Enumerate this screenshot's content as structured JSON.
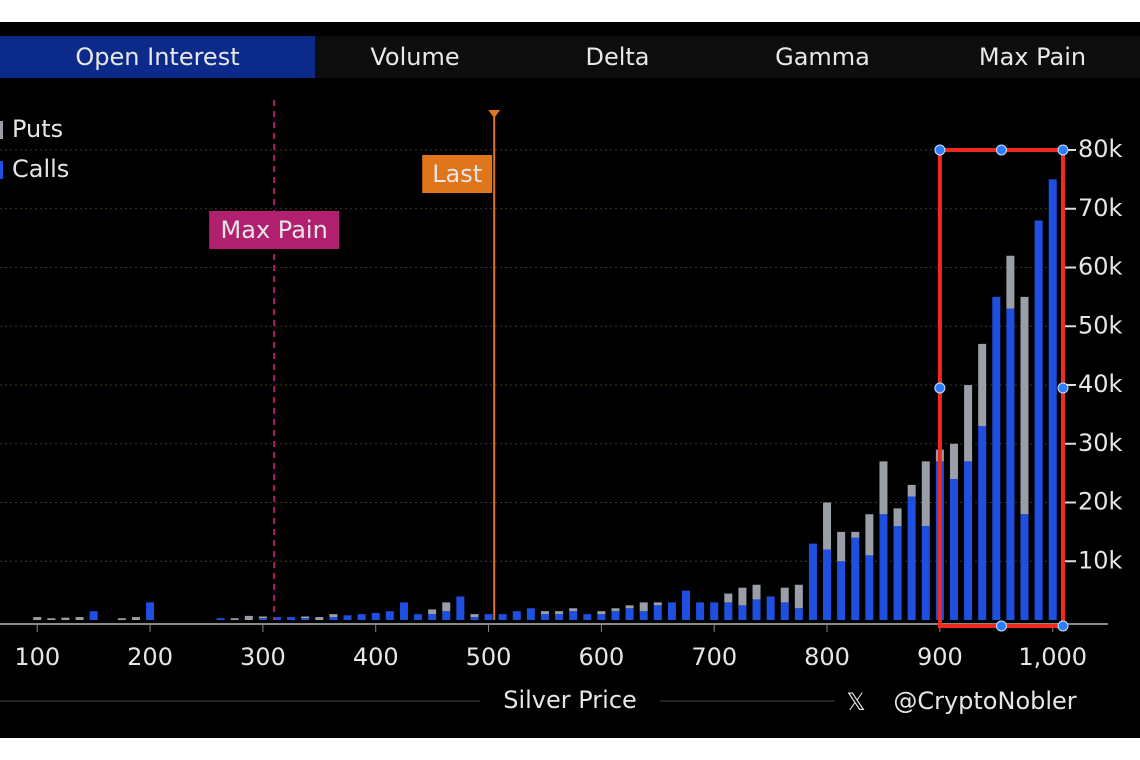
{
  "tabs": [
    "Open Interest",
    "Volume",
    "Delta",
    "Gamma",
    "Max Pain"
  ],
  "chart_data": {
    "type": "bar",
    "stacked": true,
    "x_label": "Silver Price",
    "watermark": "@CryptoNobler",
    "x": [
      100,
      112.5,
      125,
      137.5,
      150,
      162.5,
      175,
      187.5,
      200,
      212.5,
      225,
      237.5,
      250,
      262.5,
      275,
      287.5,
      300,
      312.5,
      325,
      337.5,
      350,
      362.5,
      375,
      387.5,
      400,
      412.5,
      425,
      437.5,
      450,
      462.5,
      475,
      487.5,
      500,
      512.5,
      525,
      537.5,
      550,
      562.5,
      575,
      587.5,
      600,
      612.5,
      625,
      637.5,
      650,
      662.5,
      675,
      687.5,
      700,
      712.5,
      725,
      737.5,
      750,
      762.5,
      775,
      787.5,
      800,
      812.5,
      825,
      837.5,
      850,
      862.5,
      875,
      887.5,
      900,
      912.5,
      925,
      937.5,
      950,
      962.5,
      975,
      987.5,
      1000
    ],
    "series": [
      {
        "name": "Calls",
        "color": "#1f4fe0",
        "values": [
          0,
          0,
          0,
          0,
          1500,
          0,
          0,
          0,
          3000,
          0,
          0,
          0,
          0,
          300,
          0,
          0,
          300,
          500,
          500,
          300,
          0,
          500,
          800,
          1000,
          1200,
          1500,
          3000,
          1000,
          1000,
          1500,
          4000,
          500,
          1000,
          1000,
          1500,
          2000,
          1000,
          1000,
          1500,
          1000,
          1000,
          1500,
          2000,
          1500,
          2500,
          3000,
          5000,
          3000,
          3000,
          3000,
          2500,
          3500,
          4000,
          3000,
          2000,
          13000,
          12000,
          10000,
          14000,
          11000,
          18000,
          16000,
          21000,
          16000,
          27000,
          24000,
          27000,
          33000,
          55000,
          53000,
          18000,
          68000,
          75000
        ]
      },
      {
        "name": "Puts",
        "color": "#9a9ea6",
        "values": [
          500,
          300,
          400,
          500,
          0,
          0,
          300,
          500,
          0,
          0,
          0,
          0,
          0,
          0,
          300,
          700,
          300,
          0,
          0,
          300,
          500,
          500,
          0,
          0,
          0,
          0,
          0,
          0,
          800,
          1500,
          0,
          500,
          0,
          0,
          0,
          0,
          500,
          500,
          500,
          0,
          500,
          500,
          500,
          1500,
          500,
          0,
          0,
          0,
          0,
          1500,
          3000,
          2500,
          0,
          2500,
          4000,
          0,
          8000,
          5000,
          1000,
          7000,
          9000,
          3000,
          2000,
          11000,
          2000,
          6000,
          13000,
          14000,
          0,
          9000,
          37000,
          0,
          0
        ]
      }
    ],
    "xlim": [
      67,
      1049
    ],
    "xticks": [
      100,
      200,
      300,
      400,
      500,
      600,
      700,
      800,
      900,
      {
        "value": 1000,
        "label": "1,000"
      }
    ],
    "ylim": [
      0,
      88000
    ],
    "yticks": [
      {
        "value": 10000,
        "label": "10k"
      },
      {
        "value": 20000,
        "label": "20k"
      },
      {
        "value": 30000,
        "label": "30k"
      },
      {
        "value": 40000,
        "label": "40k"
      },
      {
        "value": 50000,
        "label": "50k"
      },
      {
        "value": 60000,
        "label": "60k"
      },
      {
        "value": 70000,
        "label": "70k"
      },
      {
        "value": 80000,
        "label": "80k"
      }
    ],
    "grid": true,
    "annotations": [
      {
        "label": "Max Pain",
        "x": 310,
        "color": "#b0206e"
      },
      {
        "label": "Last",
        "x": 505,
        "color": "#e0761c"
      }
    ]
  }
}
